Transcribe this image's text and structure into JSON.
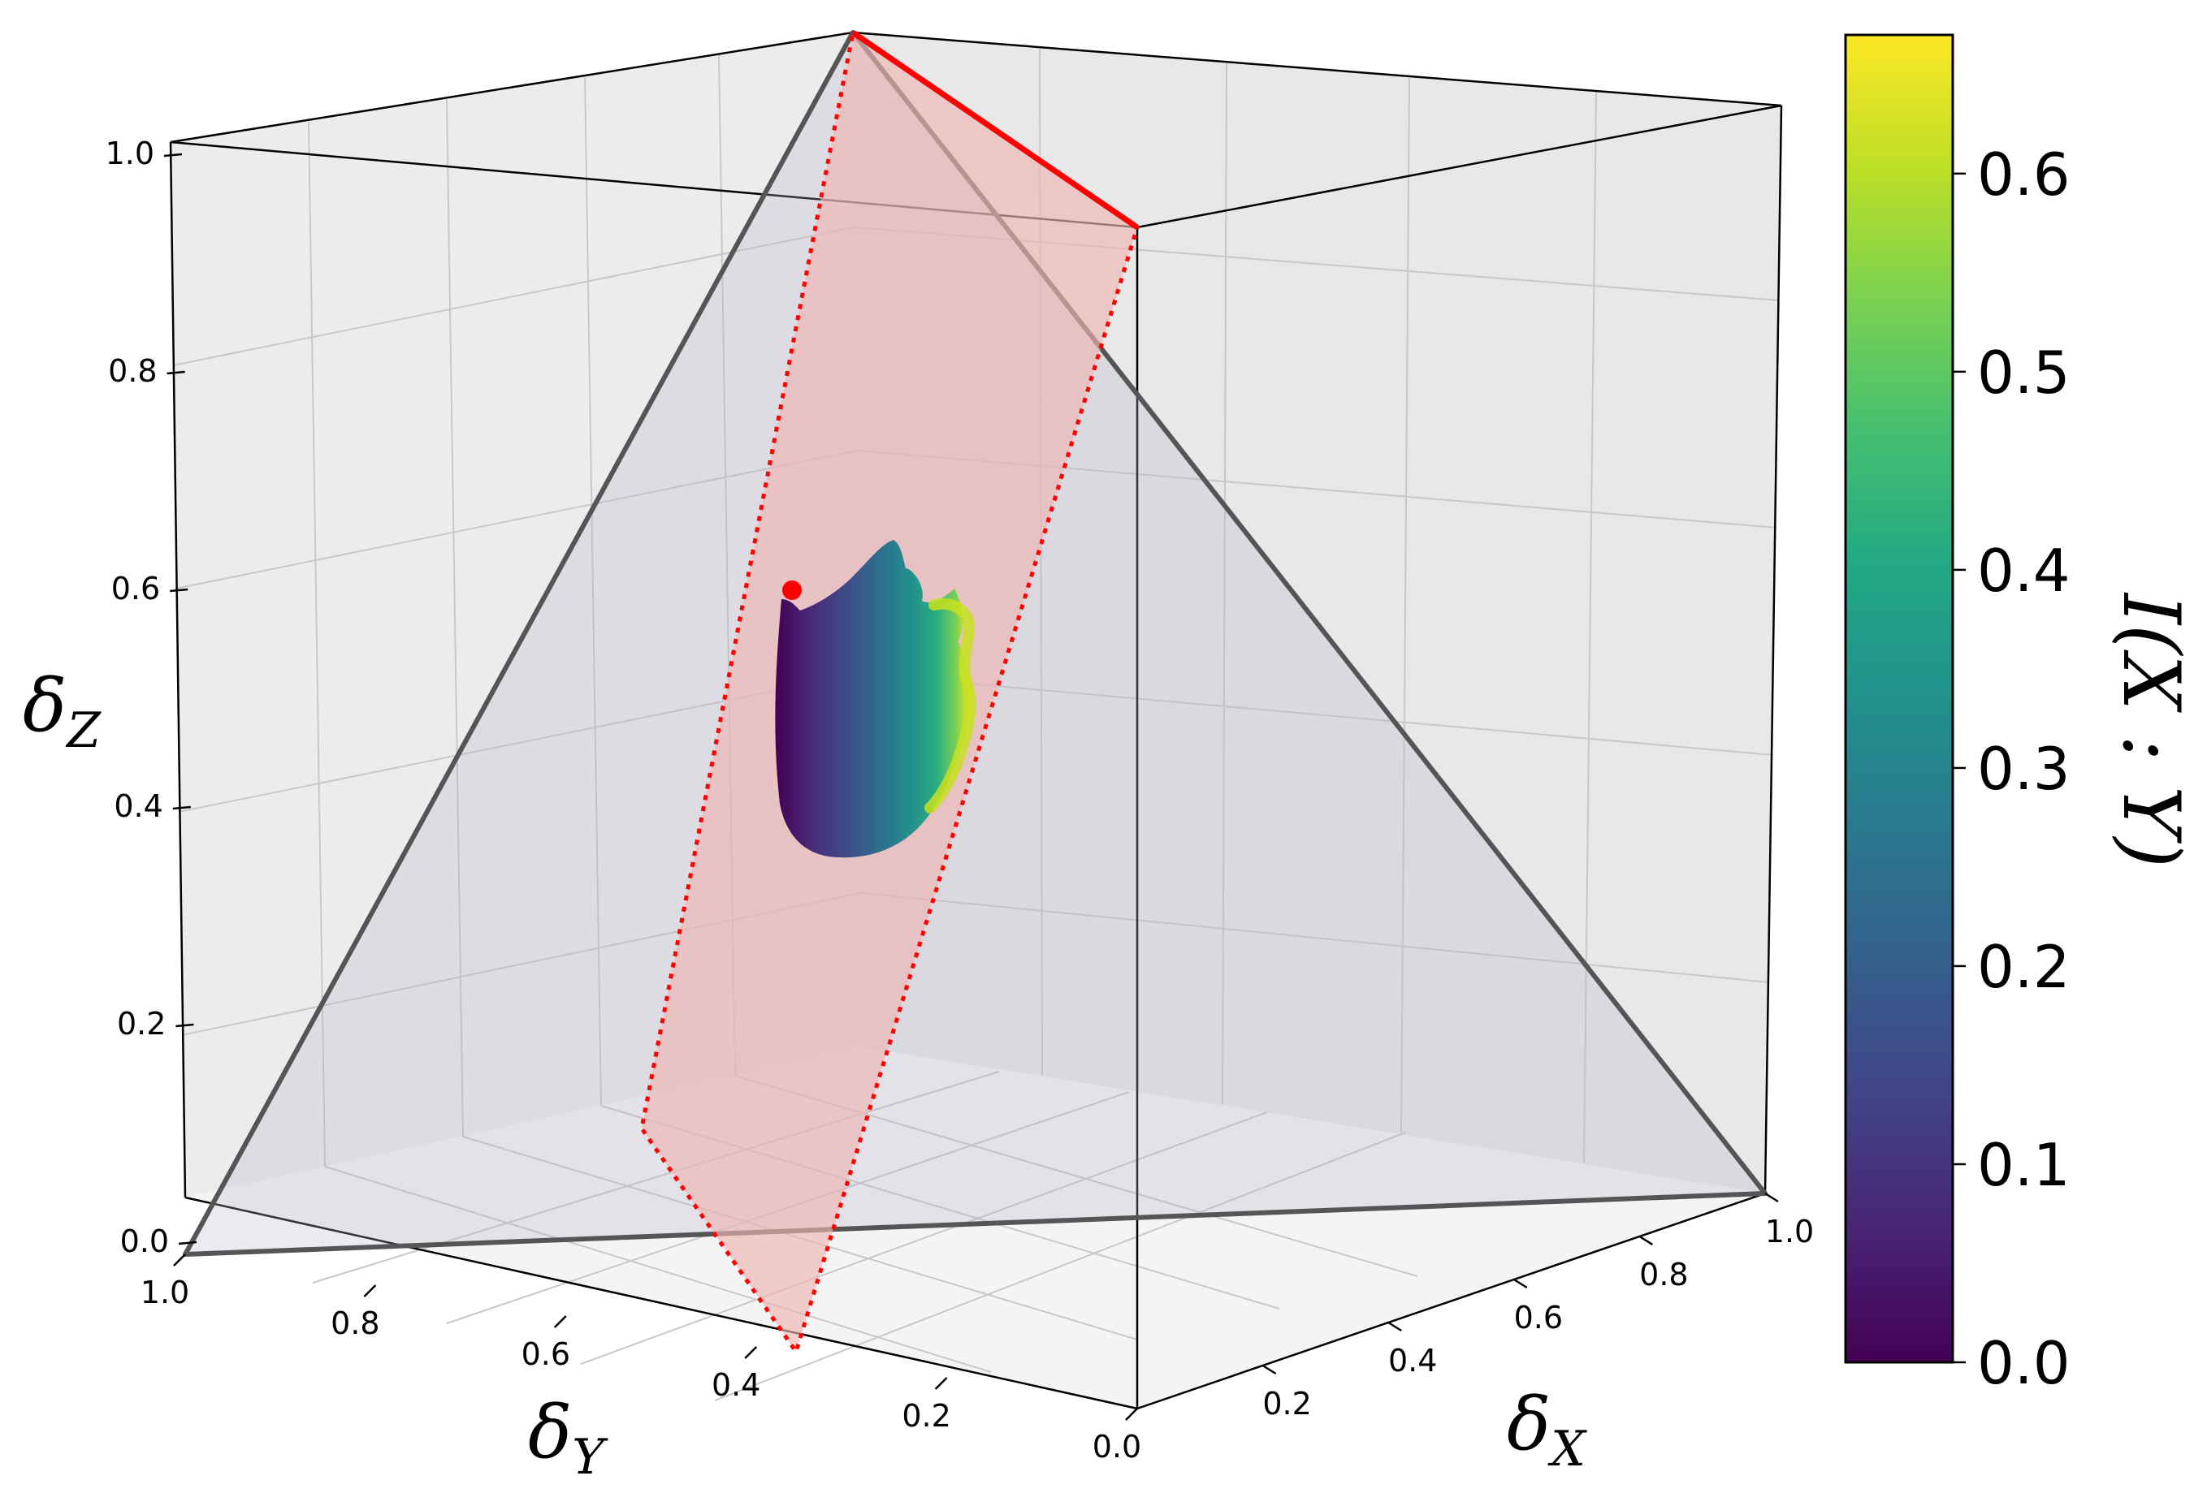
{
  "chart_data": {
    "type": "scatter",
    "projection": "3d",
    "axes": {
      "x": {
        "label": "δ",
        "subscript": "X",
        "ticks": [
          "0.2",
          "0.4",
          "0.6",
          "0.8",
          "1.0"
        ],
        "range": [
          0,
          1
        ]
      },
      "y": {
        "label": "δ",
        "subscript": "Y",
        "ticks": [
          "0.0",
          "0.2",
          "0.4",
          "0.6",
          "0.8",
          "1.0"
        ],
        "range": [
          0,
          1
        ]
      },
      "z": {
        "label": "δ",
        "subscript": "Z",
        "ticks": [
          "0.0",
          "0.2",
          "0.4",
          "0.6",
          "0.8",
          "1.0"
        ],
        "range": [
          0,
          1
        ]
      }
    },
    "colorbar": {
      "label": "I(X : Y)",
      "colormap": "viridis",
      "ticks": [
        "0.0",
        "0.1",
        "0.2",
        "0.3",
        "0.4",
        "0.5",
        "0.6"
      ],
      "range": [
        0,
        0.67
      ]
    },
    "simplex": {
      "vertices": [
        [
          1,
          0,
          0
        ],
        [
          0,
          1,
          0
        ],
        [
          0,
          0,
          1
        ]
      ],
      "fill": "#b4b4c8",
      "edge": "#555555"
    },
    "plane": {
      "vertices": [
        [
          0.67,
          0,
          0.33
        ],
        [
          0,
          0.33,
          0.67
        ],
        [
          0.33,
          0.67,
          0
        ]
      ],
      "fill": "#f0b4b4",
      "edge": "#ff0000"
    },
    "highlight_edge": {
      "from": [
        0,
        0,
        1
      ],
      "to": [
        0.67,
        0,
        0.33
      ],
      "color": "#ff0000"
    },
    "start_point": {
      "x": 0.33,
      "y": 0.33,
      "z": 0.33,
      "color": "#ff0000"
    },
    "grid": true,
    "point_cloud": "colored by I(X : Y), ranging from 0.0 near the start point to about 0.65 at the far edge"
  },
  "colors": {
    "pane_back": "#ececec",
    "pane_floor": "#f4f4f4",
    "grid": "#c8c8c8"
  }
}
